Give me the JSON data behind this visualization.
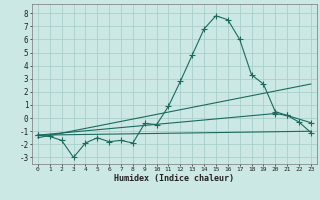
{
  "xlabel": "Humidex (Indice chaleur)",
  "background_color": "#cce8e4",
  "grid_color": "#aacfca",
  "line_color": "#1a6b5e",
  "xlim": [
    -0.5,
    23.5
  ],
  "ylim": [
    -3.5,
    8.7
  ],
  "yticks": [
    -3,
    -2,
    -1,
    0,
    1,
    2,
    3,
    4,
    5,
    6,
    7,
    8
  ],
  "xticks": [
    0,
    1,
    2,
    3,
    4,
    5,
    6,
    7,
    8,
    9,
    10,
    11,
    12,
    13,
    14,
    15,
    16,
    17,
    18,
    19,
    20,
    21,
    22,
    23
  ],
  "series1_x": [
    0,
    1,
    2,
    3,
    4,
    5,
    6,
    7,
    8,
    9,
    10,
    11,
    12,
    13,
    14,
    15,
    16,
    17,
    18,
    19,
    20,
    21,
    22,
    23
  ],
  "series1_y": [
    -1.3,
    -1.4,
    -1.7,
    -3.0,
    -1.9,
    -1.5,
    -1.8,
    -1.7,
    -1.9,
    -0.4,
    -0.5,
    0.9,
    2.8,
    4.8,
    6.8,
    7.8,
    7.5,
    6.0,
    3.3,
    2.6,
    0.5,
    0.2,
    -0.3,
    -1.1
  ],
  "series2_x": [
    0,
    23
  ],
  "series2_y": [
    -1.3,
    -1.0
  ],
  "series3_x": [
    0,
    23
  ],
  "series3_y": [
    -1.5,
    2.6
  ],
  "series4_x": [
    0,
    20,
    21,
    23
  ],
  "series4_y": [
    -1.3,
    0.35,
    0.2,
    -0.35
  ]
}
